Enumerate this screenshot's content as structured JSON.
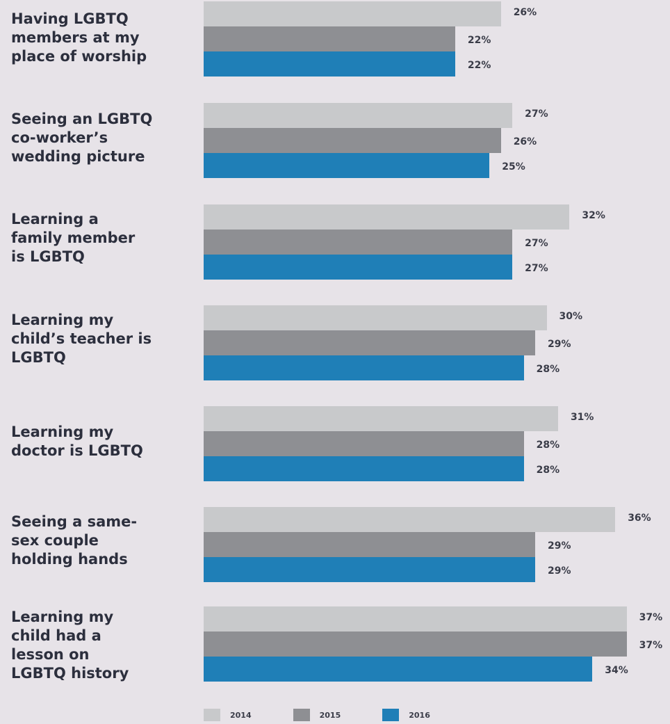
{
  "chart_data": {
    "type": "bar",
    "orientation": "horizontal",
    "categories": [
      "Having LGBTQ\nmembers at my\nplace of worship",
      "Seeing an LGBTQ\nco-worker’s\nwedding picture",
      "Learning a\nfamily member\nis LGBTQ",
      "Learning my\nchild’s teacher is\nLGBTQ",
      "Learning my\ndoctor is LGBTQ",
      "Seeing a same-\nsex couple\nholding hands",
      "Learning my\nchild had a\nlesson on\nLGBTQ history"
    ],
    "series": [
      {
        "name": "2014",
        "color": "#c8c9cb",
        "values": [
          26,
          27,
          32,
          30,
          31,
          36,
          37
        ],
        "labels": [
          "26%",
          "27%",
          "32%",
          "30%",
          "31%",
          "36%",
          "37%"
        ]
      },
      {
        "name": "2015",
        "color": "#8e8f93",
        "values": [
          22,
          26,
          27,
          29,
          28,
          29,
          37
        ],
        "labels": [
          "22%",
          "26%",
          "27%",
          "29%",
          "28%",
          "29%",
          "37%"
        ]
      },
      {
        "name": "2016",
        "color": "#1f7fb7",
        "values": [
          22,
          25,
          27,
          28,
          28,
          29,
          34
        ],
        "labels": [
          "22%",
          "25%",
          "27%",
          "28%",
          "28%",
          "29%",
          "34%"
        ]
      }
    ],
    "legend_position": "bottom",
    "grid": false
  }
}
